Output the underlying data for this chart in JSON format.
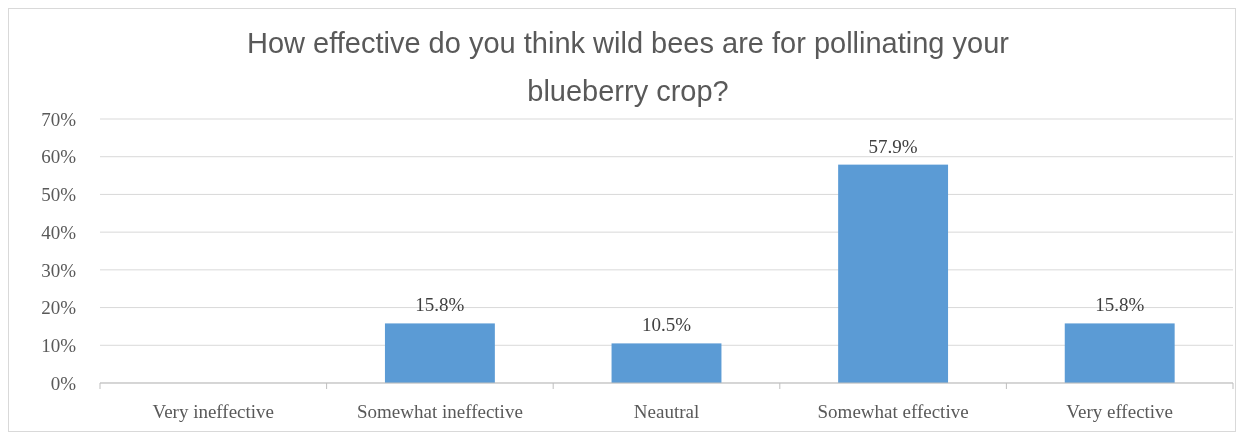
{
  "chart_data": {
    "type": "bar",
    "title": "How effective do you think wild bees are for pollinating your blueberry crop?",
    "categories": [
      "Very ineffective",
      "Somewhat ineffective",
      "Neautral",
      "Somewhat effective",
      "Very effective"
    ],
    "values": [
      0,
      15.8,
      10.5,
      57.9,
      15.8
    ],
    "value_labels": [
      null,
      "15.8%",
      "10.5%",
      "57.9%",
      "15.8%"
    ],
    "color": "#5b9bd5",
    "ylim": [
      0,
      70
    ],
    "yticks": [
      {
        "value": 0,
        "label": "0%"
      },
      {
        "value": 10,
        "label": "10%"
      },
      {
        "value": 20,
        "label": "20%"
      },
      {
        "value": 30,
        "label": "30%"
      },
      {
        "value": 40,
        "label": "40%"
      },
      {
        "value": 50,
        "label": "50%"
      },
      {
        "value": 60,
        "label": "60%"
      },
      {
        "value": 70,
        "label": "70%"
      }
    ],
    "grid": "y"
  }
}
